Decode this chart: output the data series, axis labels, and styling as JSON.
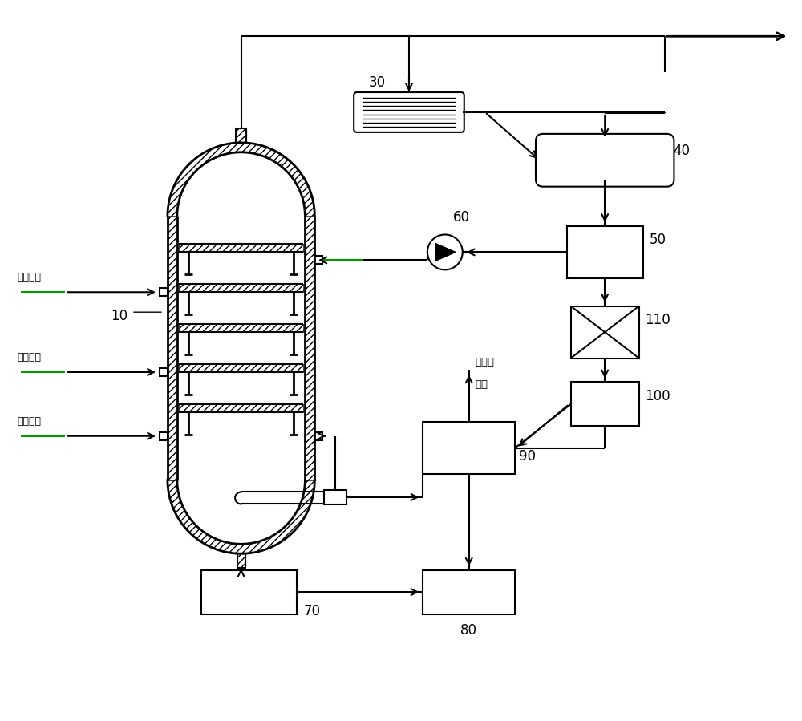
{
  "background_color": "#ffffff",
  "line_color": "#000000",
  "green_color": "#009900",
  "label_10": "10",
  "label_30": "30",
  "label_40": "40",
  "label_50": "50",
  "label_60": "60",
  "label_70": "70",
  "label_80": "80",
  "label_90": "90",
  "label_100": "100",
  "label_110": "110",
  "text_reaction_gas": "反应气体",
  "text_green_oil": "绿油去\n储罐"
}
